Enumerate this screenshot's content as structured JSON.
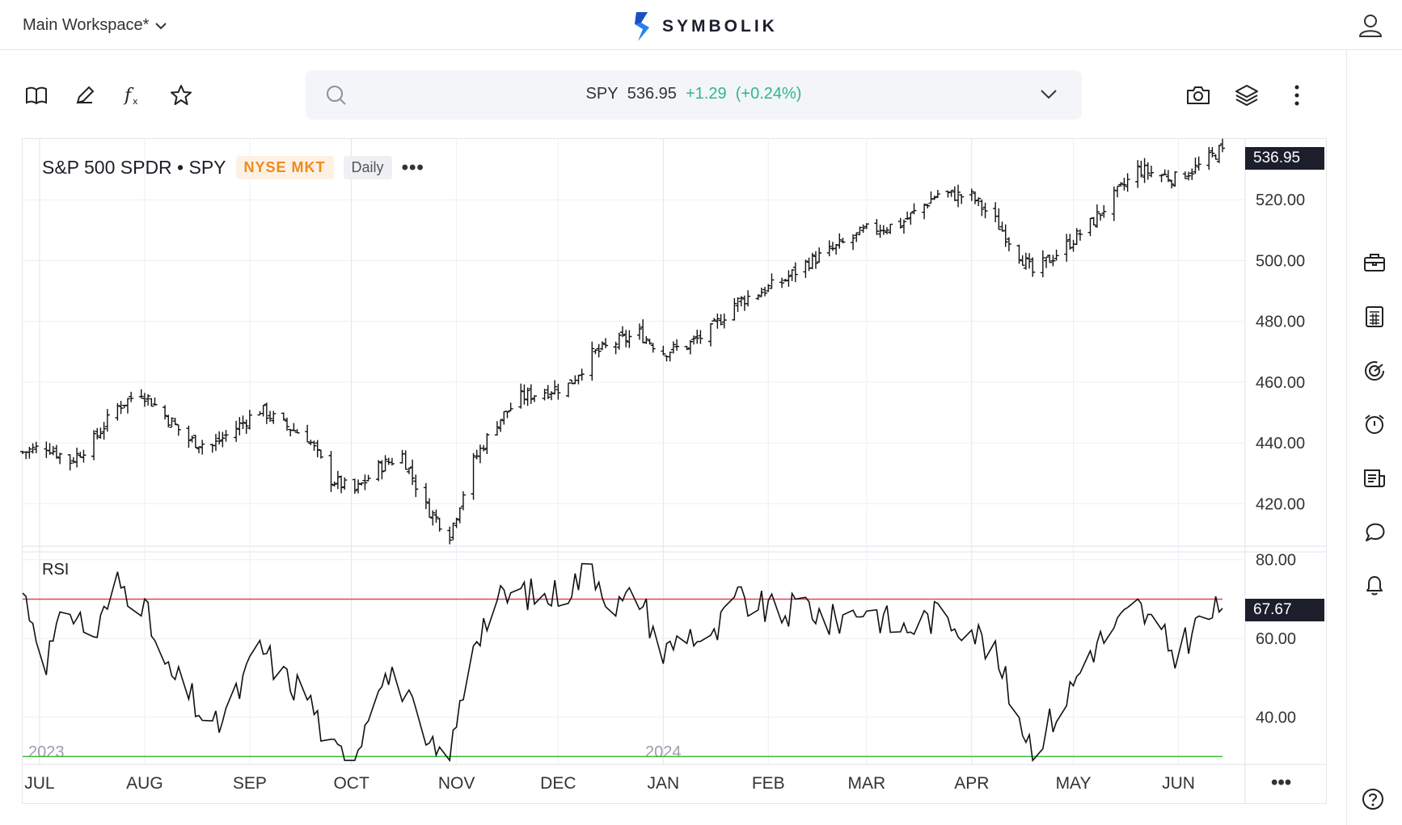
{
  "workspace": {
    "label": "Main Workspace*"
  },
  "brand": {
    "name": "SYMBOLIK"
  },
  "search": {
    "symbol": "SPY",
    "price": "536.95",
    "change": "+1.29",
    "change_pct": "(+0.24%)"
  },
  "chart_header": {
    "title": "S&P 500 SPDR • SPY",
    "exchange": "NYSE MKT",
    "interval": "Daily",
    "more": "•••"
  },
  "rsi_panel": {
    "label": "RSI"
  },
  "colors": {
    "up": "#2fb886",
    "overbought": "#e0455a",
    "oversold": "#3cc13c",
    "exchange_badge": "#f08a1c",
    "grid": "#edeff3"
  },
  "icons": {
    "toolbar": [
      "book-icon",
      "pencil-icon",
      "function-icon",
      "star-icon"
    ],
    "toolbar_right": [
      "camera-icon",
      "layers-icon",
      "more-vertical-icon"
    ],
    "rail": [
      "briefcase-icon",
      "calculator-icon",
      "radar-icon",
      "alarm-clock-icon",
      "news-icon",
      "chat-icon",
      "bell-icon"
    ],
    "help": "help-icon"
  },
  "axis_more": "•••",
  "chart_data": [
    {
      "type": "ohlc",
      "title": "S&P 500 SPDR • SPY",
      "last_value": 536.95,
      "ylim": [
        406,
        540
      ],
      "y_ticks": [
        "520.00",
        "500.00",
        "480.00",
        "460.00",
        "440.00",
        "420.00"
      ],
      "x_ticks": [
        "JUL",
        "AUG",
        "SEP",
        "OCT",
        "NOV",
        "DEC",
        "JAN",
        "FEB",
        "MAR",
        "APR",
        "MAY",
        "JUN"
      ],
      "year_labels": [
        "2023",
        "2024"
      ],
      "grid": true,
      "close_points": [
        [
          "2023-06-26",
          437
        ],
        [
          "2023-07-03",
          439
        ],
        [
          "2023-07-10",
          434
        ],
        [
          "2023-07-17",
          441
        ],
        [
          "2023-07-24",
          452
        ],
        [
          "2023-07-31",
          457
        ],
        [
          "2023-08-07",
          449
        ],
        [
          "2023-08-14",
          441
        ],
        [
          "2023-08-21",
          439
        ],
        [
          "2023-08-28",
          445
        ],
        [
          "2023-09-04",
          451
        ],
        [
          "2023-09-11",
          446
        ],
        [
          "2023-09-18",
          442
        ],
        [
          "2023-09-25",
          428
        ],
        [
          "2023-10-02",
          424
        ],
        [
          "2023-10-09",
          432
        ],
        [
          "2023-10-16",
          436
        ],
        [
          "2023-10-23",
          419
        ],
        [
          "2023-10-30",
          410
        ],
        [
          "2023-11-06",
          434
        ],
        [
          "2023-11-13",
          447
        ],
        [
          "2023-11-20",
          455
        ],
        [
          "2023-11-27",
          457
        ],
        [
          "2023-12-04",
          459
        ],
        [
          "2023-12-11",
          469
        ],
        [
          "2023-12-18",
          473
        ],
        [
          "2023-12-25",
          476
        ],
        [
          "2024-01-01",
          470
        ],
        [
          "2024-01-08",
          472
        ],
        [
          "2024-01-15",
          477
        ],
        [
          "2024-01-22",
          486
        ],
        [
          "2024-02-05",
          493
        ],
        [
          "2024-02-12",
          499
        ],
        [
          "2024-02-19",
          503
        ],
        [
          "2024-03-01",
          510
        ],
        [
          "2024-03-11",
          512
        ],
        [
          "2024-03-22",
          522
        ],
        [
          "2024-04-01",
          521
        ],
        [
          "2024-04-08",
          513
        ],
        [
          "2024-04-19",
          496
        ],
        [
          "2024-04-29",
          505
        ],
        [
          "2024-05-06",
          512
        ],
        [
          "2024-05-20",
          530
        ],
        [
          "2024-05-31",
          527
        ],
        [
          "2024-06-07",
          531
        ],
        [
          "2024-06-14",
          536.95
        ]
      ]
    },
    {
      "type": "line",
      "name": "RSI",
      "last_value": 67.67,
      "ylim": [
        28,
        82
      ],
      "y_ticks": [
        "80.00",
        "60.00",
        "40.00"
      ],
      "overbought": 70,
      "oversold": 30,
      "points": [
        [
          "2023-06-26",
          72
        ],
        [
          "2023-07-03",
          55
        ],
        [
          "2023-07-10",
          68
        ],
        [
          "2023-07-17",
          60
        ],
        [
          "2023-07-24",
          74
        ],
        [
          "2023-07-31",
          70
        ],
        [
          "2023-08-07",
          52
        ],
        [
          "2023-08-14",
          46
        ],
        [
          "2023-08-21",
          36
        ],
        [
          "2023-08-28",
          45
        ],
        [
          "2023-09-04",
          58
        ],
        [
          "2023-09-11",
          50
        ],
        [
          "2023-09-18",
          46
        ],
        [
          "2023-09-25",
          31
        ],
        [
          "2023-10-02",
          30
        ],
        [
          "2023-10-09",
          51
        ],
        [
          "2023-10-16",
          48
        ],
        [
          "2023-10-23",
          32
        ],
        [
          "2023-10-30",
          29
        ],
        [
          "2023-11-06",
          60
        ],
        [
          "2023-11-13",
          69
        ],
        [
          "2023-11-20",
          72
        ],
        [
          "2023-11-27",
          70
        ],
        [
          "2023-12-04",
          73
        ],
        [
          "2023-12-11",
          78
        ],
        [
          "2023-12-18",
          68
        ],
        [
          "2023-12-25",
          71
        ],
        [
          "2024-01-01",
          56
        ],
        [
          "2024-01-08",
          62
        ],
        [
          "2024-01-15",
          58
        ],
        [
          "2024-01-22",
          70
        ],
        [
          "2024-02-05",
          66
        ],
        [
          "2024-02-12",
          69
        ],
        [
          "2024-02-19",
          64
        ],
        [
          "2024-03-01",
          68
        ],
        [
          "2024-03-11",
          62
        ],
        [
          "2024-03-22",
          66
        ],
        [
          "2024-04-01",
          63
        ],
        [
          "2024-04-08",
          55
        ],
        [
          "2024-04-19",
          32
        ],
        [
          "2024-04-29",
          45
        ],
        [
          "2024-05-06",
          57
        ],
        [
          "2024-05-20",
          68
        ],
        [
          "2024-05-31",
          56
        ],
        [
          "2024-06-07",
          64
        ],
        [
          "2024-06-14",
          67.67
        ]
      ]
    }
  ]
}
